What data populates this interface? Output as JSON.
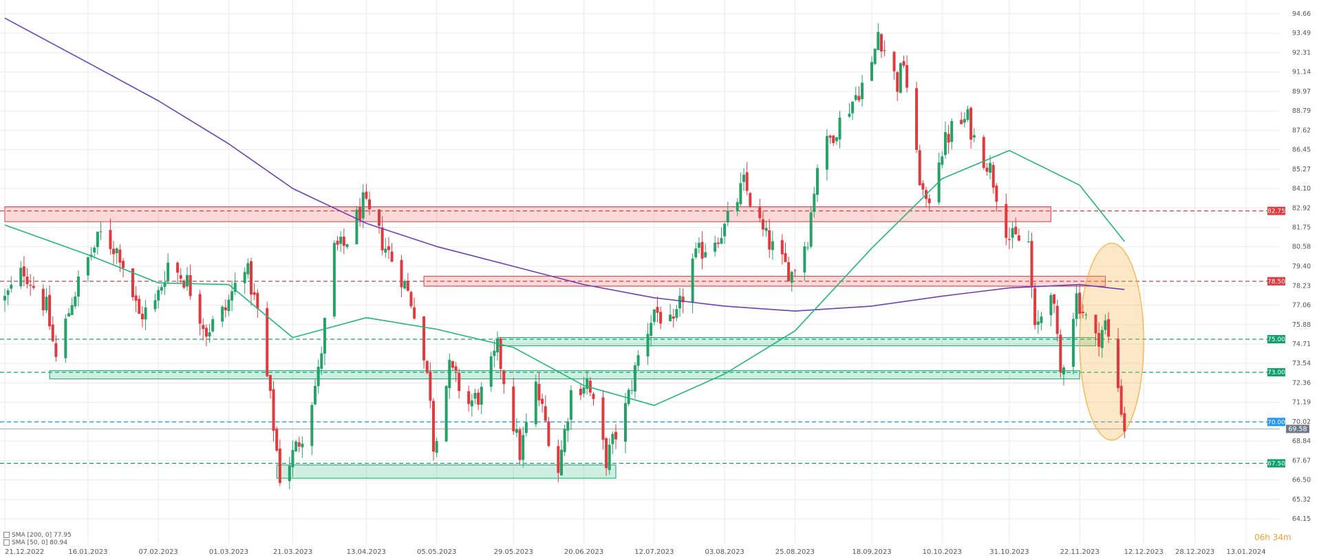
{
  "chart_data": {
    "type": "candlestick",
    "y_ticks": [
      "94.66",
      "93.49",
      "92.31",
      "91.14",
      "89.97",
      "88.79",
      "87.62",
      "86.45",
      "85.27",
      "84.10",
      "82.92",
      "81.75",
      "80.58",
      "79.40",
      "78.23",
      "77.06",
      "75.88",
      "74.71",
      "73.54",
      "72.36",
      "71.19",
      "70.02",
      "68.84",
      "67.67",
      "66.50",
      "65.32",
      "64.15"
    ],
    "ylim": [
      63.0,
      95.5
    ],
    "x_ticks": [
      "21.12.2022",
      "16.01.2023",
      "07.02.2023",
      "01.03.2023",
      "21.03.2023",
      "13.04.2023",
      "05.05.2023",
      "29.05.2023",
      "20.06.2023",
      "12.07.2023",
      "03.08.2023",
      "25.08.2023",
      "18.09.2023",
      "10.10.2023",
      "31.10.2023",
      "22.11.2023",
      "12.12.2023",
      "28.12.2023",
      "13.01.2024"
    ],
    "x_dates": [
      "2022-12-21",
      "2023-01-16",
      "2023-02-07",
      "2023-03-01",
      "2023-03-21",
      "2023-04-13",
      "2023-05-05",
      "2023-05-29",
      "2023-06-20",
      "2023-07-12",
      "2023-08-03",
      "2023-08-25",
      "2023-09-18",
      "2023-10-10",
      "2023-10-31",
      "2023-11-22",
      "2023-12-12",
      "2023-12-28",
      "2024-01-13"
    ],
    "close_path": [
      {
        "date": "2022-12-21",
        "close": 77.4
      },
      {
        "date": "2022-12-27",
        "close": 79.2
      },
      {
        "date": "2023-01-03",
        "close": 76.9
      },
      {
        "date": "2023-01-06",
        "close": 73.8
      },
      {
        "date": "2023-01-11",
        "close": 77.4
      },
      {
        "date": "2023-01-16",
        "close": 79.8
      },
      {
        "date": "2023-01-20",
        "close": 81.3
      },
      {
        "date": "2023-01-26",
        "close": 80.2
      },
      {
        "date": "2023-02-01",
        "close": 76.4
      },
      {
        "date": "2023-02-06",
        "close": 77.1
      },
      {
        "date": "2023-02-10",
        "close": 79.6
      },
      {
        "date": "2023-02-16",
        "close": 78.5
      },
      {
        "date": "2023-02-22",
        "close": 75.5
      },
      {
        "date": "2023-02-28",
        "close": 76.8
      },
      {
        "date": "2023-03-06",
        "close": 79.7
      },
      {
        "date": "2023-03-10",
        "close": 76.6
      },
      {
        "date": "2023-03-14",
        "close": 71.3
      },
      {
        "date": "2023-03-17",
        "close": 66.7
      },
      {
        "date": "2023-03-20",
        "close": 67.6
      },
      {
        "date": "2023-03-24",
        "close": 69.3
      },
      {
        "date": "2023-03-29",
        "close": 72.9
      },
      {
        "date": "2023-04-03",
        "close": 80.4
      },
      {
        "date": "2023-04-06",
        "close": 80.6
      },
      {
        "date": "2023-04-12",
        "close": 83.2
      },
      {
        "date": "2023-04-18",
        "close": 80.9
      },
      {
        "date": "2023-04-24",
        "close": 78.8
      },
      {
        "date": "2023-04-28",
        "close": 76.8
      },
      {
        "date": "2023-05-03",
        "close": 71.7
      },
      {
        "date": "2023-05-04",
        "close": 68.6
      },
      {
        "date": "2023-05-09",
        "close": 73.2
      },
      {
        "date": "2023-05-15",
        "close": 71.1
      },
      {
        "date": "2023-05-19",
        "close": 71.7
      },
      {
        "date": "2023-05-24",
        "close": 74.4
      },
      {
        "date": "2023-05-31",
        "close": 68.1
      },
      {
        "date": "2023-06-05",
        "close": 72.1
      },
      {
        "date": "2023-06-12",
        "close": 67.1
      },
      {
        "date": "2023-06-16",
        "close": 71.8
      },
      {
        "date": "2023-06-21",
        "close": 72.5
      },
      {
        "date": "2023-06-27",
        "close": 67.7
      },
      {
        "date": "2023-07-03",
        "close": 70.8
      },
      {
        "date": "2023-07-07",
        "close": 73.9
      },
      {
        "date": "2023-07-12",
        "close": 76.8
      },
      {
        "date": "2023-07-18",
        "close": 75.6
      },
      {
        "date": "2023-07-24",
        "close": 79.7
      },
      {
        "date": "2023-07-28",
        "close": 80.6
      },
      {
        "date": "2023-08-03",
        "close": 81.7
      },
      {
        "date": "2023-08-09",
        "close": 84.4
      },
      {
        "date": "2023-08-15",
        "close": 81.4
      },
      {
        "date": "2023-08-21",
        "close": 79.6
      },
      {
        "date": "2023-08-24",
        "close": 79.0
      },
      {
        "date": "2023-08-29",
        "close": 81.2
      },
      {
        "date": "2023-09-01",
        "close": 85.6
      },
      {
        "date": "2023-09-06",
        "close": 87.5
      },
      {
        "date": "2023-09-12",
        "close": 89.4
      },
      {
        "date": "2023-09-18",
        "close": 91.4
      },
      {
        "date": "2023-09-20",
        "close": 93.6
      },
      {
        "date": "2023-09-26",
        "close": 90.4
      },
      {
        "date": "2023-09-28",
        "close": 91.8
      },
      {
        "date": "2023-10-02",
        "close": 85.8
      },
      {
        "date": "2023-10-05",
        "close": 82.8
      },
      {
        "date": "2023-10-09",
        "close": 86.1
      },
      {
        "date": "2023-10-13",
        "close": 87.7
      },
      {
        "date": "2023-10-18",
        "close": 88.3
      },
      {
        "date": "2023-10-20",
        "close": 87.1
      },
      {
        "date": "2023-10-25",
        "close": 85.3
      },
      {
        "date": "2023-10-31",
        "close": 81.1
      },
      {
        "date": "2023-11-06",
        "close": 80.8
      },
      {
        "date": "2023-11-08",
        "close": 75.3
      },
      {
        "date": "2023-11-13",
        "close": 78.3
      },
      {
        "date": "2023-11-16",
        "close": 72.9
      },
      {
        "date": "2023-11-21",
        "close": 77.6
      },
      {
        "date": "2023-11-27",
        "close": 74.9
      },
      {
        "date": "2023-11-30",
        "close": 75.9
      },
      {
        "date": "2023-12-04",
        "close": 72.1
      },
      {
        "date": "2023-12-06",
        "close": 69.6
      }
    ],
    "sma200": [
      {
        "date": "2022-12-21",
        "value": 94.4
      },
      {
        "date": "2023-01-16",
        "value": 91.7
      },
      {
        "date": "2023-02-07",
        "value": 89.4
      },
      {
        "date": "2023-03-01",
        "value": 86.8
      },
      {
        "date": "2023-03-21",
        "value": 84.1
      },
      {
        "date": "2023-04-13",
        "value": 82.0
      },
      {
        "date": "2023-05-05",
        "value": 80.6
      },
      {
        "date": "2023-05-29",
        "value": 79.4
      },
      {
        "date": "2023-06-20",
        "value": 78.3
      },
      {
        "date": "2023-07-12",
        "value": 77.5
      },
      {
        "date": "2023-08-03",
        "value": 77.0
      },
      {
        "date": "2023-08-25",
        "value": 76.7
      },
      {
        "date": "2023-09-18",
        "value": 77.0
      },
      {
        "date": "2023-10-10",
        "value": 77.6
      },
      {
        "date": "2023-10-31",
        "value": 78.1
      },
      {
        "date": "2023-11-22",
        "value": 78.3
      },
      {
        "date": "2023-12-06",
        "value": 78.0
      }
    ],
    "sma50": [
      {
        "date": "2022-12-21",
        "value": 81.9
      },
      {
        "date": "2023-01-16",
        "value": 80.1
      },
      {
        "date": "2023-02-07",
        "value": 78.4
      },
      {
        "date": "2023-03-01",
        "value": 78.3
      },
      {
        "date": "2023-03-21",
        "value": 75.1
      },
      {
        "date": "2023-04-13",
        "value": 76.3
      },
      {
        "date": "2023-05-05",
        "value": 75.6
      },
      {
        "date": "2023-05-29",
        "value": 74.5
      },
      {
        "date": "2023-06-20",
        "value": 72.2
      },
      {
        "date": "2023-07-12",
        "value": 71.0
      },
      {
        "date": "2023-08-03",
        "value": 72.9
      },
      {
        "date": "2023-08-25",
        "value": 75.5
      },
      {
        "date": "2023-09-18",
        "value": 80.5
      },
      {
        "date": "2023-10-10",
        "value": 84.7
      },
      {
        "date": "2023-10-31",
        "value": 86.4
      },
      {
        "date": "2023-11-22",
        "value": 84.3
      },
      {
        "date": "2023-12-06",
        "value": 80.9
      }
    ],
    "resistance_zones": [
      {
        "from": "2022-12-21",
        "to": "2023-11-13",
        "low": 82.1,
        "high": 83.0
      },
      {
        "from": "2023-05-01",
        "to": "2023-11-30",
        "low": 78.2,
        "high": 78.8
      }
    ],
    "support_zones": [
      {
        "from": "2023-05-24",
        "to": "2023-11-27",
        "low": 74.6,
        "high": 75.1
      },
      {
        "from": "2023-01-04",
        "to": "2023-11-22",
        "low": 72.6,
        "high": 73.1
      },
      {
        "from": "2023-03-16",
        "to": "2023-06-30",
        "low": 66.6,
        "high": 67.4
      }
    ],
    "levels": [
      {
        "label": "82.75",
        "value": 82.75,
        "color": "#e0393e"
      },
      {
        "label": "78.50",
        "value": 78.5,
        "color": "#e0393e"
      },
      {
        "label": "75.00",
        "value": 75.0,
        "color": "#10a070"
      },
      {
        "label": "73.00",
        "value": 73.0,
        "color": "#10a070"
      },
      {
        "label": "70.00",
        "value": 70.0,
        "color": "#2196f3"
      },
      {
        "label": "67.50",
        "value": 67.5,
        "color": "#10a070"
      }
    ],
    "last_price": {
      "label": "69.58",
      "value": 69.58,
      "color": "#6c7a89"
    },
    "highlight_ellipse": {
      "from": "2023-11-22",
      "to": "2023-12-12",
      "low": 68.9,
      "high": 80.8,
      "color": "#f5b041"
    },
    "colors": {
      "up": "#26a269",
      "down": "#e0393e",
      "sma200": "#6b3fb6",
      "sma50": "#1fb57a",
      "grid": "#e9e9e9"
    }
  },
  "legend": {
    "sma200": "SMA [200, 0] 77.95",
    "sma50": "SMA [50, 0] 80.94"
  },
  "countdown": "06h 34m"
}
